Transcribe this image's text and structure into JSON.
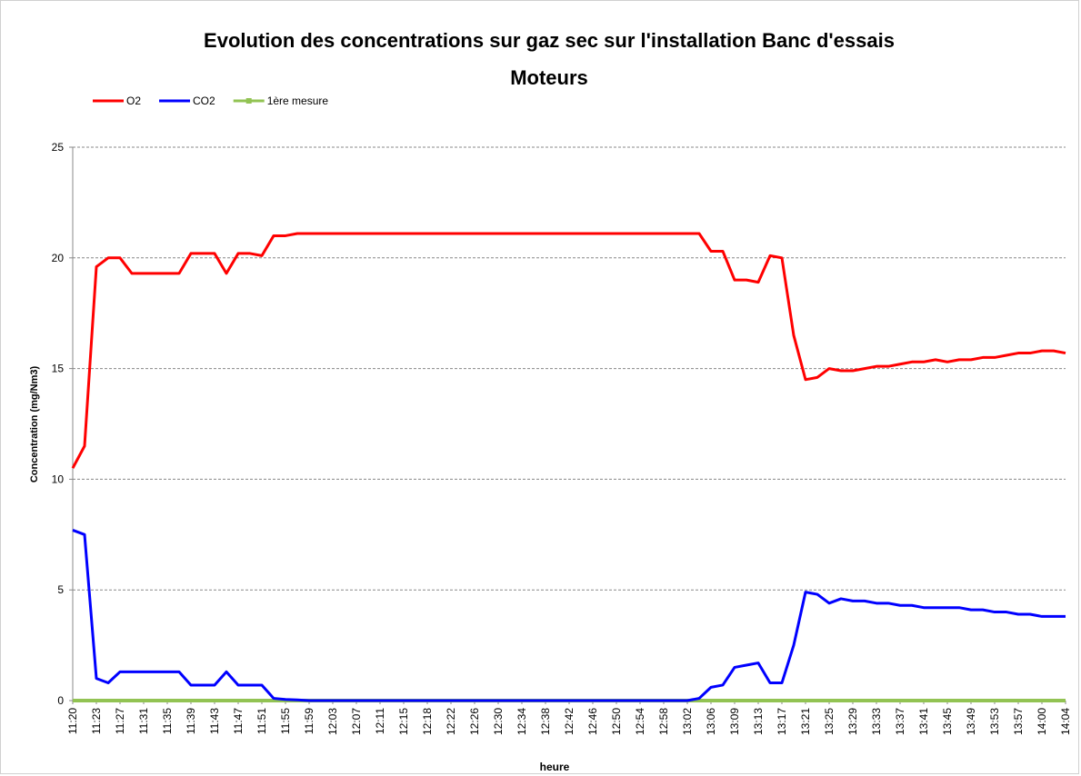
{
  "chart_data": {
    "type": "line",
    "title": [
      "Evolution des concentrations sur gaz sec sur l'installation Banc d'essais",
      "Moteurs"
    ],
    "xlabel": "heure",
    "ylabel": "Concentration (mg/Nm3)",
    "categories": [
      "11:20",
      null,
      "11:23",
      null,
      "11:27",
      null,
      "11:31",
      null,
      "11:35",
      null,
      "11:39",
      null,
      "11:43",
      null,
      "11:47",
      null,
      "11:51",
      null,
      "11:55",
      null,
      "11:59",
      null,
      "12:03",
      null,
      "12:07",
      null,
      "12:11",
      null,
      "12:15",
      null,
      "12:18",
      null,
      "12:22",
      null,
      "12:26",
      null,
      "12:30",
      null,
      "12:34",
      null,
      "12:38",
      null,
      "12:42",
      null,
      "12:46",
      null,
      "12:50",
      null,
      "12:54",
      null,
      "12:58",
      null,
      "13:02",
      null,
      "13:06",
      null,
      "13:09",
      null,
      "13:13",
      null,
      "13:17",
      null,
      "13:21",
      null,
      "13:25",
      null,
      "13:29",
      null,
      "13:33",
      null,
      "13:37",
      null,
      "13:41",
      null,
      "13:45",
      null,
      "13:49",
      null,
      "13:53",
      null,
      "13:57",
      null,
      "14:00",
      null,
      "14:04"
    ],
    "series": [
      {
        "name": "O2",
        "color": "#ff0000",
        "values": [
          10.5,
          11.5,
          19.6,
          20.0,
          20.0,
          19.3,
          19.3,
          19.3,
          19.3,
          19.3,
          20.2,
          20.2,
          20.2,
          19.3,
          20.2,
          20.2,
          20.1,
          21.0,
          21.0,
          21.1,
          21.1,
          21.1,
          21.1,
          21.1,
          21.1,
          21.1,
          21.1,
          21.1,
          21.1,
          21.1,
          21.1,
          21.1,
          21.1,
          21.1,
          21.1,
          21.1,
          21.1,
          21.1,
          21.1,
          21.1,
          21.1,
          21.1,
          21.1,
          21.1,
          21.1,
          21.1,
          21.1,
          21.1,
          21.1,
          21.1,
          21.1,
          21.1,
          21.1,
          21.1,
          20.3,
          20.3,
          19.0,
          19.0,
          18.9,
          20.1,
          20.0,
          16.5,
          14.5,
          14.6,
          15.0,
          14.9,
          14.9,
          15.0,
          15.1,
          15.1,
          15.2,
          15.3,
          15.3,
          15.4,
          15.3,
          15.4,
          15.4,
          15.5,
          15.5,
          15.6,
          15.7,
          15.7,
          15.8,
          15.8,
          15.7
        ]
      },
      {
        "name": "CO2",
        "color": "#0000ff",
        "values": [
          7.7,
          7.5,
          1.0,
          0.8,
          1.3,
          1.3,
          1.3,
          1.3,
          1.3,
          1.3,
          0.7,
          0.7,
          0.7,
          1.3,
          0.7,
          0.7,
          0.7,
          0.1,
          0.05,
          0.03,
          0,
          0,
          0,
          0,
          0,
          0,
          0,
          0,
          0,
          0,
          0,
          0,
          0,
          0,
          0,
          0,
          0,
          0,
          0,
          0,
          0,
          0,
          0,
          0,
          0,
          0,
          0,
          0,
          0,
          0,
          0,
          0,
          0,
          0.1,
          0.6,
          0.7,
          1.5,
          1.6,
          1.7,
          0.8,
          0.8,
          2.5,
          4.9,
          4.8,
          4.4,
          4.6,
          4.5,
          4.5,
          4.4,
          4.4,
          4.3,
          4.3,
          4.2,
          4.2,
          4.2,
          4.2,
          4.1,
          4.1,
          4.0,
          4.0,
          3.9,
          3.9,
          3.8,
          3.8,
          3.8
        ]
      },
      {
        "name": "1ère mesure",
        "color": "#92c353",
        "values": [
          0,
          0,
          0,
          0,
          0,
          0,
          0,
          0,
          0,
          0,
          0,
          0,
          0,
          0,
          0,
          0,
          0,
          0,
          0,
          0,
          0,
          0,
          0,
          0,
          0,
          0,
          0,
          0,
          0,
          0,
          0,
          0,
          0,
          0,
          0,
          0,
          0,
          0,
          0,
          0,
          0,
          0,
          0,
          0,
          0,
          0,
          0,
          0,
          0,
          0,
          0,
          0,
          0,
          0,
          0,
          0,
          0,
          0,
          0,
          0,
          0,
          0,
          0,
          0,
          0,
          0,
          0,
          0,
          0,
          0,
          0,
          0,
          0,
          0,
          0,
          0,
          0,
          0,
          0,
          0,
          0,
          0,
          0,
          0,
          0
        ]
      }
    ],
    "ylim": [
      0,
      25
    ],
    "yticks": [
      0,
      5,
      10,
      15,
      20,
      25
    ],
    "grid": true,
    "legend": "top-left"
  }
}
